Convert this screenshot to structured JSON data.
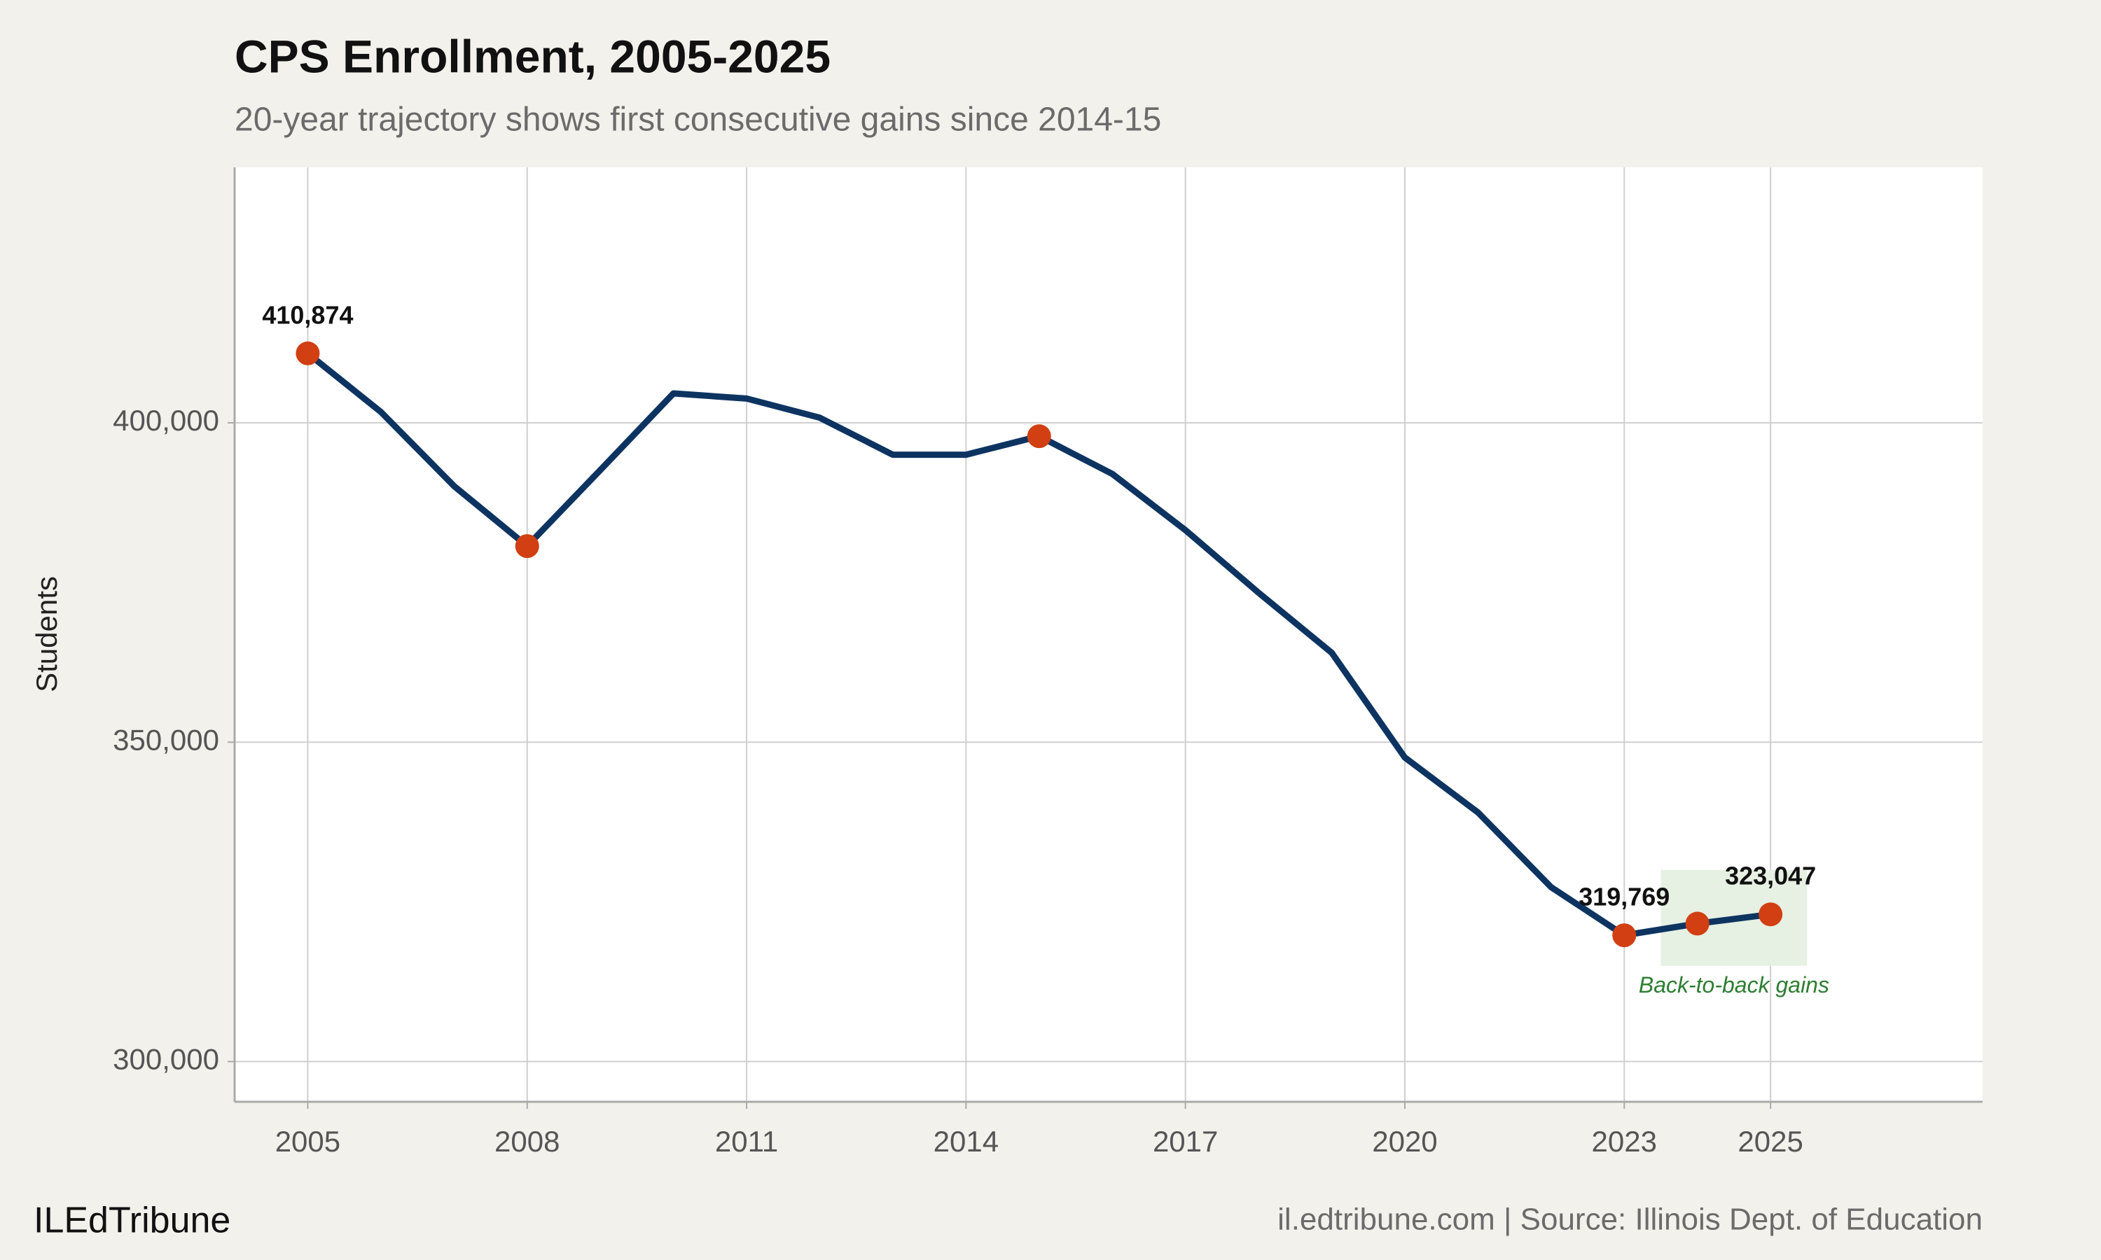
{
  "chart_data": {
    "type": "line",
    "title": "CPS Enrollment, 2005-2025",
    "subtitle": "20-year trajectory shows first consecutive gains since 2014-15",
    "y_label": "Students",
    "x": [
      2005,
      2006,
      2007,
      2008,
      2009,
      2010,
      2011,
      2012,
      2013,
      2014,
      2015,
      2016,
      2017,
      2018,
      2019,
      2020,
      2021,
      2022,
      2023,
      2024,
      2025
    ],
    "series": [
      {
        "name": "Students",
        "color": "#0d3461",
        "marker_color": "#d13f12",
        "values": [
          410874,
          401700,
          390100,
          380700,
          392600,
          404600,
          403800,
          400800,
          395000,
          395000,
          397900,
          392000,
          383200,
          373400,
          364000,
          347600,
          339000,
          327300,
          319769,
          321600,
          323047
        ],
        "value_labels": [
          "410,874",
          null,
          null,
          null,
          null,
          null,
          null,
          null,
          null,
          null,
          null,
          null,
          null,
          null,
          null,
          null,
          null,
          null,
          "319,769",
          null,
          "323,047"
        ],
        "markers": [
          0,
          3,
          10,
          18,
          19,
          20
        ]
      }
    ],
    "highlight": {
      "xlim": [
        2023.5,
        2025.5
      ],
      "ylim": [
        315000,
        330000
      ],
      "color": "#e6f0e3",
      "annotation": "Back-to-back gains",
      "annotation_color": "#2e7d32"
    },
    "xlim": [
      2004,
      2027.9
    ],
    "xticks": [
      2005,
      2008,
      2011,
      2014,
      2017,
      2020,
      2023,
      2025
    ],
    "ylim": [
      293700,
      440000
    ],
    "yticks": [
      {
        "value": 300000,
        "label": "300,000"
      },
      {
        "value": 350000,
        "label": "350,000"
      },
      {
        "value": 400000,
        "label": "400,000"
      }
    ],
    "grid": true,
    "footer_left": "ILEdTribune",
    "footer_right": "il.edtribune.com | Source: Illinois Dept. of Education"
  }
}
